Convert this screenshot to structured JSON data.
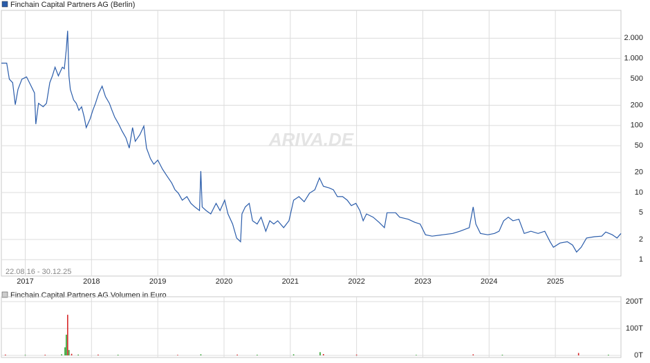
{
  "chart_data": [
    {
      "type": "line",
      "series": [
        {
          "name": "Finchain Capital Partners AG (Berlin)",
          "color": "#2a5caa",
          "x": [
            2016.64,
            2016.72,
            2016.76,
            2016.81,
            2016.85,
            2016.89,
            2016.95,
            2017.02,
            2017.09,
            2017.14,
            2017.16,
            2017.2,
            2017.27,
            2017.32,
            2017.37,
            2017.41,
            2017.45,
            2017.5,
            2017.56,
            2017.59,
            2017.62,
            2017.64,
            2017.66,
            2017.68,
            2017.73,
            2017.77,
            2017.81,
            2017.85,
            2017.89,
            2017.92,
            2017.98,
            2018.02,
            2018.06,
            2018.11,
            2018.16,
            2018.21,
            2018.27,
            2018.31,
            2018.35,
            2018.41,
            2018.46,
            2018.52,
            2018.57,
            2018.62,
            2018.66,
            2018.73,
            2018.79,
            2018.83,
            2018.89,
            2018.94,
            2019.0,
            2019.07,
            2019.14,
            2019.21,
            2019.26,
            2019.31,
            2019.37,
            2019.44,
            2019.5,
            2019.56,
            2019.63,
            2019.65,
            2019.67,
            2019.73,
            2019.8,
            2019.88,
            2019.94,
            2020.01,
            2020.06,
            2020.13,
            2020.19,
            2020.25,
            2020.27,
            2020.32,
            2020.38,
            2020.43,
            2020.5,
            2020.56,
            2020.63,
            2020.69,
            2020.75,
            2020.81,
            2020.9,
            2020.98,
            2021.05,
            2021.13,
            2021.21,
            2021.29,
            2021.37,
            2021.44,
            2021.5,
            2021.58,
            2021.65,
            2021.71,
            2021.79,
            2021.86,
            2021.92,
            2021.99,
            2022.05,
            2022.1,
            2022.15,
            2022.25,
            2022.34,
            2022.42,
            2022.46,
            2022.59,
            2022.65,
            2022.78,
            2022.88,
            2022.96,
            2023.04,
            2023.14,
            2023.3,
            2023.45,
            2023.56,
            2023.7,
            2023.76,
            2023.8,
            2023.87,
            2023.98,
            2024.08,
            2024.15,
            2024.22,
            2024.29,
            2024.36,
            2024.45,
            2024.53,
            2024.63,
            2024.74,
            2024.84,
            2024.92,
            2024.97,
            2025.07,
            2025.18,
            2025.26,
            2025.32,
            2025.39,
            2025.47,
            2025.59,
            2025.7,
            2025.76,
            2025.86,
            2025.93,
            2025.99
          ],
          "values": [
            850,
            850,
            490,
            435,
            204,
            345,
            490,
            530,
            385,
            305,
            105,
            214,
            190,
            214,
            435,
            550,
            740,
            550,
            740,
            700,
            1370,
            2580,
            550,
            345,
            240,
            214,
            168,
            190,
            133,
            93,
            126,
            168,
            214,
            305,
            385,
            270,
            214,
            168,
            133,
            105,
            83,
            65,
            46,
            93,
            58,
            73,
            98,
            46,
            32,
            26.5,
            30.5,
            22.4,
            17.6,
            13.9,
            11,
            9.8,
            7.7,
            8.7,
            6.9,
            6.1,
            5.4,
            20.9,
            6.1,
            5.4,
            4.8,
            6.9,
            5.4,
            7.7,
            4.8,
            3.4,
            2.1,
            1.85,
            4.8,
            6.1,
            6.9,
            3.8,
            3.4,
            4.3,
            2.65,
            3.8,
            3.4,
            3.8,
            3.0,
            3.8,
            7.7,
            8.7,
            7.3,
            9.8,
            11,
            16.5,
            12.4,
            11.8,
            11,
            8.7,
            8.7,
            7.7,
            6.4,
            6.9,
            5.4,
            3.8,
            4.8,
            4.3,
            3.6,
            3.0,
            5.0,
            5.0,
            4.3,
            4.0,
            3.6,
            3.4,
            2.35,
            2.24,
            2.35,
            2.46,
            2.65,
            3.0,
            6.1,
            3.4,
            2.46,
            2.35,
            2.46,
            2.65,
            3.8,
            4.3,
            3.8,
            4.0,
            2.46,
            2.65,
            2.46,
            2.65,
            1.85,
            1.53,
            1.77,
            1.85,
            1.65,
            1.3,
            1.53,
            2.1,
            2.2,
            2.24,
            2.58,
            2.35,
            2.1,
            2.46
          ]
        }
      ],
      "xlim": [
        2016.64,
        2025.99
      ],
      "xticks": [
        2017,
        2018,
        2019,
        2020,
        2021,
        2022,
        2023,
        2024,
        2025
      ],
      "ylim": [
        0.57,
        5200
      ],
      "yticks": [
        1,
        2,
        5,
        10,
        20,
        50,
        100,
        200,
        500,
        {
          "value": 1000,
          "label": "1.000"
        },
        {
          "value": 2000,
          "label": "2.000"
        }
      ],
      "log_y": true,
      "grid": true,
      "annotation": "22.08.16 - 30.12.25",
      "watermark": "ARIVA.DE"
    },
    {
      "type": "bar",
      "series": [
        {
          "name": "Finchain Capital Partners AG Volumen in Euro",
          "x": [
            2016.7,
            2017.0,
            2017.3,
            2017.55,
            2017.6,
            2017.62,
            2017.64,
            2017.66,
            2017.7,
            2017.8,
            2018.1,
            2018.4,
            2019.3,
            2019.65,
            2020.2,
            2020.5,
            2021.05,
            2021.45,
            2021.5,
            2022.0,
            2022.9,
            2023.76,
            2024.2,
            2025.35,
            2025.8
          ],
          "values": [
            3000,
            2000,
            2500,
            4000,
            30000,
            77000,
            151000,
            20000,
            6000,
            3000,
            3000,
            2500,
            2000,
            4000,
            3000,
            2500,
            4000,
            12000,
            5000,
            3000,
            2000,
            4000,
            2500,
            9000,
            2500
          ],
          "colors": [
            "#d62728",
            "#2ca02c",
            "#d62728",
            "#2ca02c",
            "#2ca02c",
            "#2ca02c",
            "#d62728",
            "#2ca02c",
            "#d62728",
            "#2ca02c",
            "#d62728",
            "#2ca02c",
            "#d62728",
            "#2ca02c",
            "#d62728",
            "#2ca02c",
            "#2ca02c",
            "#2ca02c",
            "#d62728",
            "#d62728",
            "#2ca02c",
            "#d62728",
            "#2ca02c",
            "#d62728",
            "#2ca02c"
          ]
        }
      ],
      "xlim": [
        2016.64,
        2025.99
      ],
      "xticks": [
        2017,
        2018,
        2019,
        2020,
        2021,
        2022,
        2023,
        2024,
        2025
      ],
      "ylim": [
        0,
        218000
      ],
      "yticks": [
        {
          "value": 0,
          "label": "0T"
        },
        {
          "value": 100000,
          "label": "100T"
        },
        {
          "value": 200000,
          "label": "200T"
        }
      ],
      "grid": true
    }
  ]
}
